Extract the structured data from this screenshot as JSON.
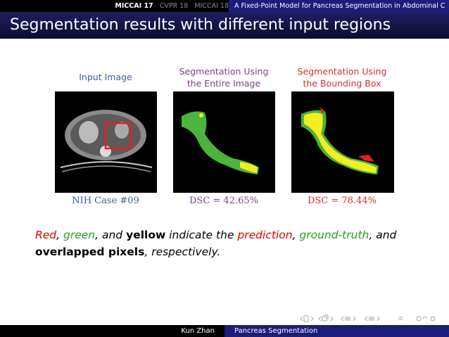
{
  "header": {
    "nav": [
      "MICCAI 17",
      "CVPR 18",
      "MICCAI 18"
    ],
    "title": "A Fixed-Point Model for Pancreas Segmentation in Abdominal C"
  },
  "slide": {
    "title": "Segmentation results with different input regions"
  },
  "figures": [
    {
      "label": [
        "Input Image"
      ],
      "caption": "NIH Case #09"
    },
    {
      "label": [
        "Segmentation Using",
        "the Entire Image"
      ],
      "caption": "DSC = 42.65%"
    },
    {
      "label": [
        "Segmentation Using",
        "the Bounding Box"
      ],
      "caption": "DSC = 78.44%"
    }
  ],
  "text": [
    "Red",
    ", ",
    "green",
    ", and ",
    "yellow",
    " indicate the ",
    "prediction",
    ", ",
    "ground-truth",
    ", and ",
    "overlapped pixels",
    ", respectively."
  ],
  "footer": {
    "author": "Kun Zhan",
    "title": "Pancreas Segmentation"
  }
}
